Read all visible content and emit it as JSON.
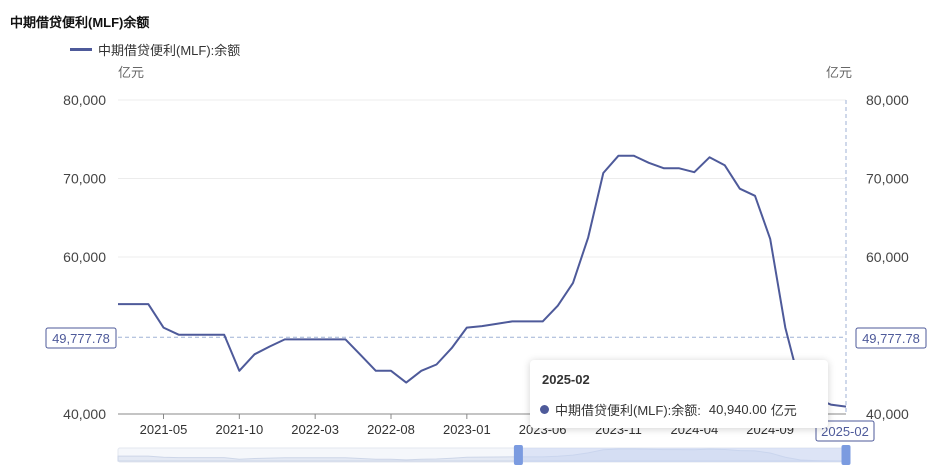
{
  "chart_data": {
    "type": "line",
    "title": "中期借贷便利(MLF)余额",
    "unit_left": "亿元",
    "unit_right": "亿元",
    "ylim": [
      40000,
      80000
    ],
    "y_ticks": [
      "40,000",
      "60,000",
      "70,000",
      "80,000"
    ],
    "x_tick_labels": [
      "2021-05",
      "2021-10",
      "2022-03",
      "2022-08",
      "2023-01",
      "2023-06",
      "2023-11",
      "2024-04",
      "2024-09"
    ],
    "axis_pointer": {
      "y_label": "49,777.78",
      "x_label": "2025-02"
    },
    "series": [
      {
        "name": "中期借贷便利(MLF):余额",
        "color": "#4e5a9a",
        "x": [
          "2021-02",
          "2021-03",
          "2021-04",
          "2021-05",
          "2021-06",
          "2021-07",
          "2021-08",
          "2021-09",
          "2021-10",
          "2021-11",
          "2021-12",
          "2022-01",
          "2022-02",
          "2022-03",
          "2022-04",
          "2022-05",
          "2022-06",
          "2022-07",
          "2022-08",
          "2022-09",
          "2022-10",
          "2022-11",
          "2022-12",
          "2023-01",
          "2023-02",
          "2023-03",
          "2023-04",
          "2023-05",
          "2023-06",
          "2023-07",
          "2023-08",
          "2023-09",
          "2023-10",
          "2023-11",
          "2023-12",
          "2024-01",
          "2024-02",
          "2024-03",
          "2024-04",
          "2024-05",
          "2024-06",
          "2024-07",
          "2024-08",
          "2024-09",
          "2024-10",
          "2024-11",
          "2024-12",
          "2025-01",
          "2025-02"
        ],
        "values": [
          54000,
          54000,
          54000,
          51000,
          50100,
          50100,
          50100,
          50100,
          45500,
          47600,
          48600,
          49500,
          49500,
          49500,
          49500,
          49500,
          47500,
          45500,
          45500,
          44000,
          45500,
          46300,
          48400,
          51000,
          51200,
          51500,
          51800,
          51800,
          51800,
          53800,
          56700,
          62500,
          70700,
          72900,
          72900,
          72000,
          71300,
          71300,
          70800,
          72700,
          71700,
          68700,
          67800,
          62300,
          51000,
          43500,
          42000,
          41200,
          40940
        ]
      }
    ]
  },
  "tooltip": {
    "title": "2025-02",
    "series_label": "中期借贷便利(MLF):余额:",
    "value": "40,940.00",
    "unit": "亿元"
  },
  "datazoom": {
    "start": 0.55,
    "end": 1.0
  }
}
